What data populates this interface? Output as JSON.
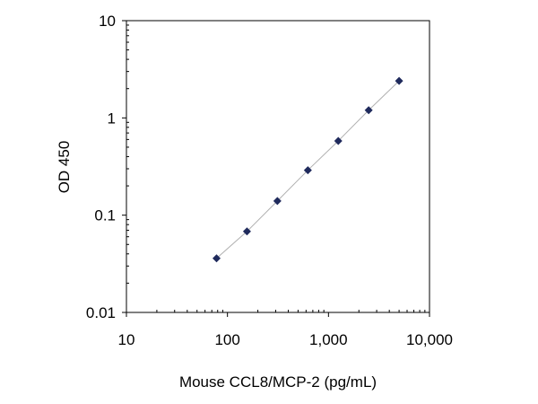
{
  "chart_data": {
    "type": "scatter",
    "title": "",
    "xlabel": "Mouse CCL8/MCP-2  (pg/mL)",
    "ylabel": "OD 450",
    "x_scale": "log",
    "y_scale": "log",
    "xlim": [
      10,
      10000
    ],
    "ylim": [
      0.01,
      10
    ],
    "x_ticks": [
      10,
      100,
      1000,
      10000
    ],
    "x_tick_labels": [
      "10",
      "100",
      "1,000",
      "10,000"
    ],
    "y_ticks": [
      0.01,
      0.1,
      1,
      10
    ],
    "y_tick_labels": [
      "0.01",
      "0.1",
      "1",
      "10"
    ],
    "grid": false,
    "legend": "none",
    "trendline": true,
    "colors": {
      "marker": "#1f2a5c",
      "line": "#b0b0b0",
      "frame": "#000000"
    },
    "series": [
      {
        "x": [
          78,
          156,
          312,
          625,
          1250,
          2500,
          5000
        ],
        "y": [
          0.036,
          0.068,
          0.14,
          0.29,
          0.58,
          1.2,
          2.4
        ]
      }
    ]
  }
}
